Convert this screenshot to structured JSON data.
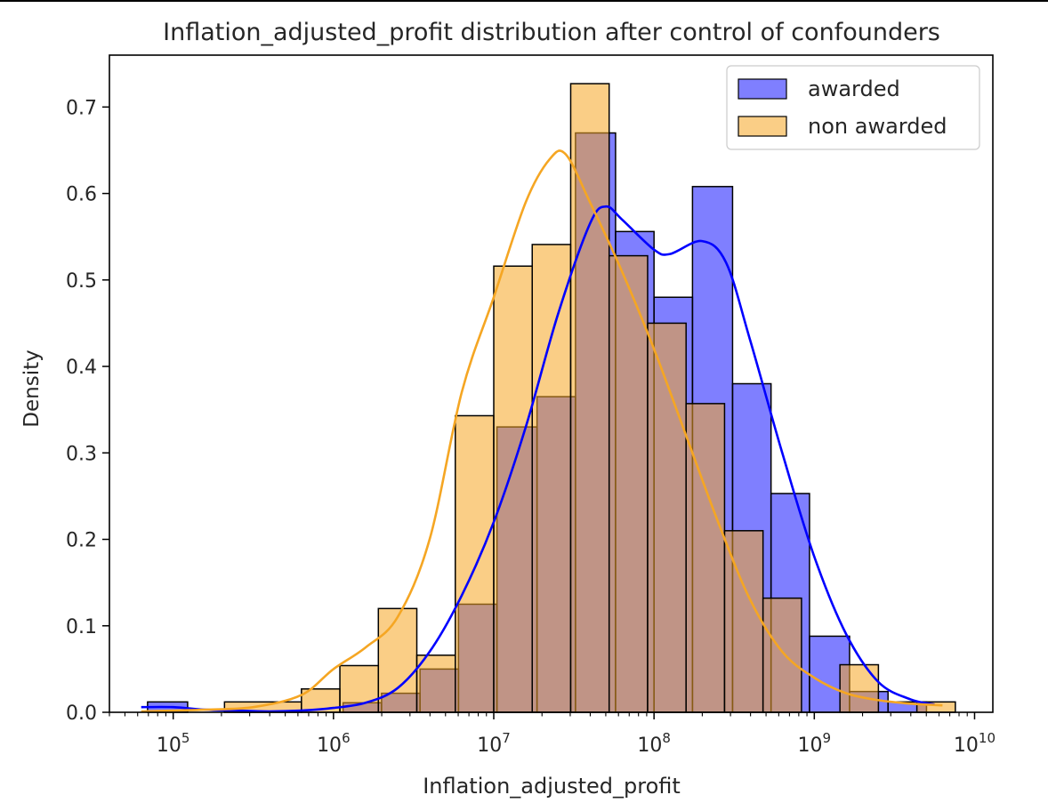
{
  "chart_data": {
    "type": "histogram",
    "title": "Inflation_adjusted_profit distribution after control of confounders",
    "xlabel": "Inflation_adjusted_profit",
    "ylabel": "Density",
    "xscale": "log",
    "xlim": [
      40000,
      13000000000
    ],
    "ylim": [
      0,
      0.76
    ],
    "yticks": [
      0.0,
      0.1,
      0.2,
      0.3,
      0.4,
      0.5,
      0.6,
      0.7
    ],
    "ytick_labels": [
      "0.0",
      "0.1",
      "0.2",
      "0.3",
      "0.4",
      "0.5",
      "0.6",
      "0.7"
    ],
    "xticks": [
      {
        "value": 100000,
        "base": "10",
        "exp": "5"
      },
      {
        "value": 1000000,
        "base": "10",
        "exp": "6"
      },
      {
        "value": 10000000,
        "base": "10",
        "exp": "7"
      },
      {
        "value": 100000000,
        "base": "10",
        "exp": "8"
      },
      {
        "value": 1000000000,
        "base": "10",
        "exp": "9"
      },
      {
        "value": 10000000000,
        "base": "10",
        "exp": "10"
      }
    ],
    "legend_position": "top-right",
    "grid": false,
    "series": [
      {
        "name": "awarded",
        "fill_color": "#0000ff",
        "fill_opacity": 0.5,
        "line_color": "#0000ff",
        "bin_edges": [
          4.84,
          5.09,
          5.34,
          5.58,
          5.82,
          6.06,
          6.3,
          6.54,
          6.78,
          7.02,
          7.27,
          7.51,
          7.76,
          8.0,
          8.24,
          8.49,
          8.73,
          8.97,
          9.22,
          9.46,
          9.7
        ],
        "values": [
          0.012,
          0.0,
          0.0,
          0.0,
          0.0,
          0.011,
          0.022,
          0.05,
          0.125,
          0.33,
          0.365,
          0.67,
          0.556,
          0.48,
          0.608,
          0.38,
          0.253,
          0.088,
          0.024,
          0.012
        ],
        "kde": [
          [
            4.8,
            0.006
          ],
          [
            5.0,
            0.006
          ],
          [
            5.2,
            0.003
          ],
          [
            5.4,
            0.002
          ],
          [
            5.6,
            0.001
          ],
          [
            5.8,
            0.002
          ],
          [
            6.0,
            0.005
          ],
          [
            6.2,
            0.011
          ],
          [
            6.4,
            0.028
          ],
          [
            6.6,
            0.07
          ],
          [
            6.8,
            0.135
          ],
          [
            7.0,
            0.22
          ],
          [
            7.2,
            0.33
          ],
          [
            7.4,
            0.46
          ],
          [
            7.6,
            0.565
          ],
          [
            7.7,
            0.585
          ],
          [
            7.8,
            0.57
          ],
          [
            8.0,
            0.535
          ],
          [
            8.1,
            0.53
          ],
          [
            8.3,
            0.545
          ],
          [
            8.45,
            0.52
          ],
          [
            8.6,
            0.43
          ],
          [
            8.8,
            0.3
          ],
          [
            9.0,
            0.18
          ],
          [
            9.2,
            0.09
          ],
          [
            9.4,
            0.035
          ],
          [
            9.6,
            0.015
          ],
          [
            9.75,
            0.009
          ]
        ]
      },
      {
        "name": "non awarded",
        "fill_color": "#f5a623",
        "fill_opacity": 0.55,
        "line_color": "#f5a623",
        "bin_edges": [
          4.84,
          5.32,
          5.8,
          6.04,
          6.28,
          6.52,
          6.76,
          7.0,
          7.24,
          7.48,
          7.72,
          7.96,
          8.2,
          8.44,
          8.68,
          8.92,
          9.16,
          9.4,
          9.64,
          9.88
        ],
        "values": [
          0.0,
          0.012,
          0.027,
          0.054,
          0.12,
          0.066,
          0.343,
          0.516,
          0.541,
          0.727,
          0.528,
          0.45,
          0.357,
          0.21,
          0.132,
          0.0,
          0.055,
          0.0,
          0.012
        ],
        "kde": [
          [
            4.8,
            0.001
          ],
          [
            5.0,
            0.002
          ],
          [
            5.2,
            0.003
          ],
          [
            5.5,
            0.006
          ],
          [
            5.8,
            0.02
          ],
          [
            6.0,
            0.05
          ],
          [
            6.2,
            0.075
          ],
          [
            6.4,
            0.11
          ],
          [
            6.6,
            0.2
          ],
          [
            6.8,
            0.37
          ],
          [
            7.0,
            0.48
          ],
          [
            7.2,
            0.59
          ],
          [
            7.35,
            0.64
          ],
          [
            7.45,
            0.645
          ],
          [
            7.6,
            0.59
          ],
          [
            7.8,
            0.51
          ],
          [
            8.0,
            0.42
          ],
          [
            8.2,
            0.32
          ],
          [
            8.4,
            0.22
          ],
          [
            8.6,
            0.13
          ],
          [
            8.8,
            0.07
          ],
          [
            9.0,
            0.04
          ],
          [
            9.2,
            0.022
          ],
          [
            9.4,
            0.014
          ],
          [
            9.6,
            0.01
          ],
          [
            9.8,
            0.008
          ]
        ]
      }
    ]
  }
}
